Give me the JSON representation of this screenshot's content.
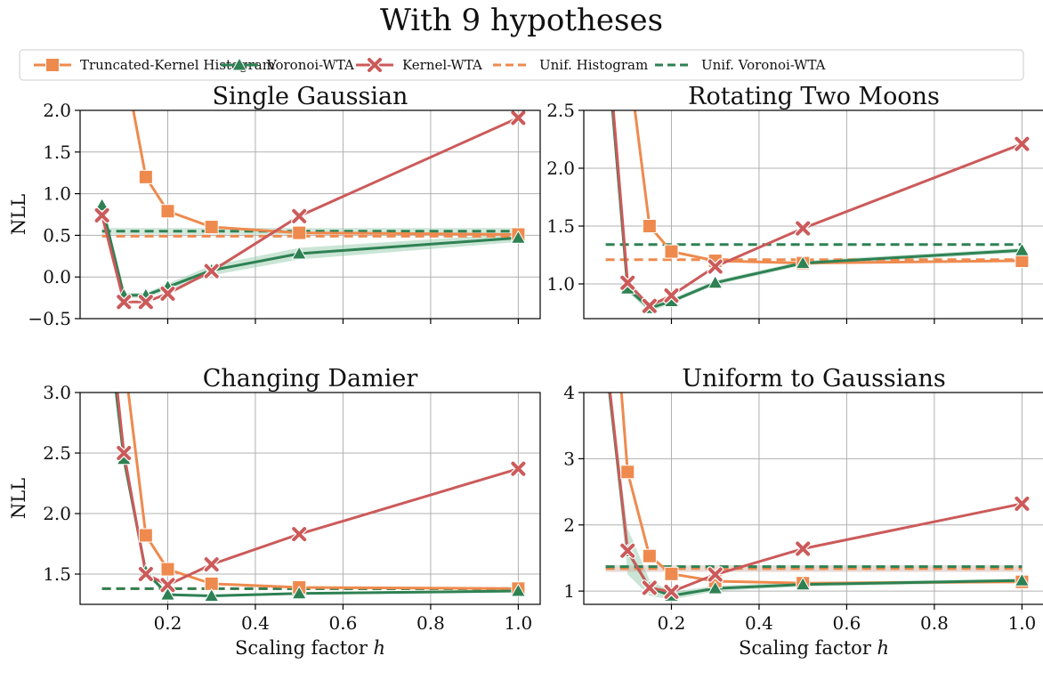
{
  "figure": {
    "title": "With 9 hypotheses",
    "xlabel": "Scaling factor h",
    "ylabel": "NLL"
  },
  "colors": {
    "histogram": "#ee8a4e",
    "voronoi": "#2e8153",
    "kernel": "#cc5a5a",
    "band_voronoi": "#9fcfb2",
    "band_kernel": "#c9b2a8",
    "grid": "#b0b0b0",
    "axis": "#000000"
  },
  "legend": [
    {
      "key": "histogram",
      "label": "Truncated-Kernel Histogram",
      "style": "solid",
      "marker": "square"
    },
    {
      "key": "voronoi",
      "label": "Voronoi-WTA",
      "style": "solid",
      "marker": "triangle"
    },
    {
      "key": "kernel",
      "label": "Kernel-WTA",
      "style": "solid",
      "marker": "x"
    },
    {
      "key": "histogram",
      "label": "Unif. Histogram",
      "style": "dashed",
      "marker": "none"
    },
    {
      "key": "voronoi",
      "label": "Unif. Voronoi-WTA",
      "style": "dashed",
      "marker": "none"
    }
  ],
  "chart_data": [
    {
      "type": "line",
      "title": "Single Gaussian",
      "xlim": [
        0,
        1.05
      ],
      "ylim": [
        -0.5,
        2.0
      ],
      "xticks": [
        0.2,
        0.4,
        0.6,
        0.8,
        1.0
      ],
      "xtick_labels": [
        "",
        "",
        "",
        "",
        ""
      ],
      "yticks": [
        -0.5,
        0.0,
        0.5,
        1.0,
        1.5,
        2.0
      ],
      "ytick_labels": [
        "−0.5",
        "0.0",
        "0.5",
        "1.0",
        "1.5",
        "2.0"
      ],
      "show_ylabel": true,
      "show_xlabel": false,
      "series": [
        {
          "name": "Truncated-Kernel Histogram",
          "x": [
            0.1,
            0.15,
            0.2,
            0.3,
            0.5,
            1.0
          ],
          "y": [
            2.6,
            1.2,
            0.79,
            0.6,
            0.53,
            0.51
          ]
        },
        {
          "name": "Voronoi-WTA",
          "x": [
            0.05,
            0.1,
            0.15,
            0.2,
            0.3,
            0.5,
            1.0
          ],
          "y": [
            0.86,
            -0.22,
            -0.22,
            -0.12,
            0.08,
            0.28,
            0.47
          ],
          "band": [
            0.06,
            0.03,
            0.03,
            0.04,
            0.06,
            0.07,
            0.05
          ]
        },
        {
          "name": "Kernel-WTA",
          "x": [
            0.05,
            0.1,
            0.15,
            0.2,
            0.3,
            0.5,
            1.0
          ],
          "y": [
            0.74,
            -0.3,
            -0.3,
            -0.2,
            0.07,
            0.73,
            1.91
          ]
        },
        {
          "name": "Unif. Histogram",
          "x": [
            0.05,
            1.0
          ],
          "y": [
            0.49,
            0.49
          ],
          "dashed": true
        },
        {
          "name": "Unif. Voronoi-WTA",
          "x": [
            0.05,
            1.0
          ],
          "y": [
            0.55,
            0.55
          ],
          "dashed": true,
          "band_const": 0.04
        }
      ]
    },
    {
      "type": "line",
      "title": "Rotating Two Moons",
      "xlim": [
        0,
        1.05
      ],
      "ylim": [
        0.7,
        2.5
      ],
      "xticks": [
        0.2,
        0.4,
        0.6,
        0.8,
        1.0
      ],
      "xtick_labels": [
        "",
        "",
        "",
        "",
        ""
      ],
      "yticks": [
        1.0,
        1.5,
        2.0,
        2.5
      ],
      "ytick_labels": [
        "1.0",
        "1.5",
        "2.0",
        "2.5"
      ],
      "show_ylabel": false,
      "show_xlabel": false,
      "series": [
        {
          "name": "Truncated-Kernel Histogram",
          "x": [
            0.1,
            0.15,
            0.2,
            0.3,
            0.5,
            1.0
          ],
          "y": [
            3.0,
            1.5,
            1.28,
            1.2,
            1.18,
            1.2
          ]
        },
        {
          "name": "Voronoi-WTA",
          "x": [
            0.05,
            0.1,
            0.15,
            0.2,
            0.3,
            0.5,
            1.0
          ],
          "y": [
            3.2,
            0.96,
            0.79,
            0.85,
            1.01,
            1.18,
            1.29
          ],
          "band": [
            0.05,
            0.03,
            0.03,
            0.02,
            0.02,
            0.02,
            0.02
          ]
        },
        {
          "name": "Kernel-WTA",
          "x": [
            0.05,
            0.1,
            0.15,
            0.2,
            0.3,
            0.5,
            1.0
          ],
          "y": [
            3.3,
            1.01,
            0.81,
            0.9,
            1.15,
            1.48,
            2.21
          ]
        },
        {
          "name": "Unif. Histogram",
          "x": [
            0.05,
            1.0
          ],
          "y": [
            1.21,
            1.21
          ],
          "dashed": true
        },
        {
          "name": "Unif. Voronoi-WTA",
          "x": [
            0.05,
            1.0
          ],
          "y": [
            1.34,
            1.34
          ],
          "dashed": true
        }
      ]
    },
    {
      "type": "line",
      "title": "Changing Damier",
      "xlim": [
        0,
        1.05
      ],
      "ylim": [
        1.25,
        3.0
      ],
      "xticks": [
        0.2,
        0.4,
        0.6,
        0.8,
        1.0
      ],
      "xtick_labels": [
        "0.2",
        "0.4",
        "0.6",
        "0.8",
        "1.0"
      ],
      "yticks": [
        1.5,
        2.0,
        2.5,
        3.0
      ],
      "ytick_labels": [
        "1.5",
        "2.0",
        "2.5",
        "3.0"
      ],
      "show_ylabel": true,
      "show_xlabel": true,
      "series": [
        {
          "name": "Truncated-Kernel Histogram",
          "x": [
            0.1,
            0.15,
            0.2,
            0.3,
            0.5,
            1.0
          ],
          "y": [
            3.3,
            1.82,
            1.54,
            1.42,
            1.39,
            1.38
          ]
        },
        {
          "name": "Voronoi-WTA",
          "x": [
            0.05,
            0.1,
            0.15,
            0.2,
            0.3,
            0.5,
            1.0
          ],
          "y": [
            4.0,
            2.45,
            1.52,
            1.33,
            1.32,
            1.34,
            1.36
          ],
          "band": [
            0.05,
            0.03,
            0.03,
            0.01,
            0.01,
            0.01,
            0.01
          ]
        },
        {
          "name": "Kernel-WTA",
          "x": [
            0.05,
            0.1,
            0.15,
            0.2,
            0.3,
            0.5,
            1.0
          ],
          "y": [
            4.2,
            2.5,
            1.5,
            1.41,
            1.58,
            1.83,
            2.37
          ]
        },
        {
          "name": "Unif. Histogram",
          "x": [
            0.05,
            1.0
          ],
          "y": [
            1.38,
            1.38
          ],
          "dashed": true
        },
        {
          "name": "Unif. Voronoi-WTA",
          "x": [
            0.05,
            1.0
          ],
          "y": [
            1.38,
            1.38
          ],
          "dashed": true
        }
      ]
    },
    {
      "type": "line",
      "title": "Uniform to Gaussians",
      "xlim": [
        0,
        1.05
      ],
      "ylim": [
        0.8,
        4.0
      ],
      "xticks": [
        0.2,
        0.4,
        0.6,
        0.8,
        1.0
      ],
      "xtick_labels": [
        "0.2",
        "0.4",
        "0.6",
        "0.8",
        "1.0"
      ],
      "yticks": [
        1,
        2,
        3,
        4
      ],
      "ytick_labels": [
        "1",
        "2",
        "3",
        "4"
      ],
      "show_ylabel": false,
      "show_xlabel": true,
      "series": [
        {
          "name": "Truncated-Kernel Histogram",
          "x": [
            0.08,
            0.1,
            0.15,
            0.2,
            0.3,
            0.5,
            1.0
          ],
          "y": [
            4.5,
            2.8,
            1.53,
            1.26,
            1.15,
            1.12,
            1.14
          ]
        },
        {
          "name": "Voronoi-WTA",
          "x": [
            0.05,
            0.1,
            0.15,
            0.2,
            0.3,
            0.5,
            1.0
          ],
          "y": [
            4.5,
            1.6,
            1.05,
            0.93,
            1.04,
            1.1,
            1.16
          ],
          "band": [
            0.1,
            0.35,
            0.12,
            0.06,
            0.04,
            0.03,
            0.03
          ]
        },
        {
          "name": "Kernel-WTA",
          "x": [
            0.05,
            0.1,
            0.15,
            0.2,
            0.3,
            0.5,
            1.0
          ],
          "y": [
            4.6,
            1.61,
            1.05,
            0.99,
            1.25,
            1.64,
            2.32
          ]
        },
        {
          "name": "Unif. Histogram",
          "x": [
            0.05,
            1.0
          ],
          "y": [
            1.34,
            1.34
          ],
          "dashed": true,
          "band_const": 0.05
        },
        {
          "name": "Unif. Voronoi-WTA",
          "x": [
            0.05,
            1.0
          ],
          "y": [
            1.37,
            1.37
          ],
          "dashed": true
        }
      ]
    }
  ]
}
